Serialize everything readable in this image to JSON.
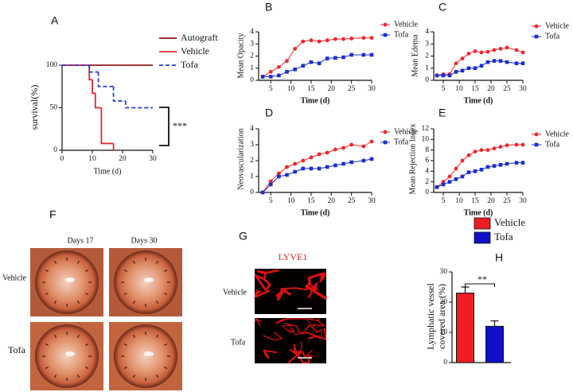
{
  "chart_data": [
    {
      "type": "line",
      "step": true,
      "title": "A",
      "xlabel": "Time (d)",
      "ylabel": "survival(%)",
      "xlim": [
        0,
        30
      ],
      "xticks": [
        0,
        10,
        20,
        30
      ],
      "ylim": [
        0,
        100
      ],
      "yticks": [
        0,
        50,
        100
      ],
      "annotation": "***",
      "legend": "right",
      "series": [
        {
          "name": "Autograft",
          "color": "#8b1a1a",
          "dashed": false,
          "x": [
            0,
            30
          ],
          "values": [
            100,
            100
          ]
        },
        {
          "name": "Vehicle",
          "color": "#e8262a",
          "dashed": false,
          "x": [
            0,
            9,
            10,
            11,
            13,
            17
          ],
          "values": [
            100,
            83,
            67,
            50,
            8,
            0
          ]
        },
        {
          "name": "Tofa",
          "color": "#2a3fd6",
          "dashed": true,
          "x": [
            0,
            9,
            12,
            17,
            21,
            30
          ],
          "values": [
            100,
            92,
            75,
            58,
            50,
            50
          ]
        }
      ]
    },
    {
      "type": "line",
      "title": "B",
      "xlabel": "Time (d)",
      "ylabel": "Mean Opacity",
      "x": [
        3,
        5,
        7,
        9,
        11,
        13,
        15,
        17,
        19,
        21,
        23,
        25,
        28,
        30
      ],
      "xlim": [
        2,
        30
      ],
      "xticks": [
        5,
        10,
        15,
        20,
        25,
        30
      ],
      "ylim": [
        0,
        4
      ],
      "yticks": [
        0,
        1,
        2,
        3,
        4
      ],
      "legend": "right",
      "series": [
        {
          "name": "Vehicle",
          "color": "#f0262a",
          "marker": "circle",
          "values": [
            0.3,
            0.7,
            1.1,
            1.6,
            2.6,
            3.2,
            3.3,
            3.2,
            3.3,
            3.4,
            3.4,
            3.45,
            3.5,
            3.5
          ]
        },
        {
          "name": "Tofa",
          "color": "#1a2fd0",
          "marker": "square",
          "values": [
            0.3,
            0.3,
            0.4,
            0.7,
            0.9,
            1.2,
            1.5,
            1.4,
            1.8,
            1.85,
            1.9,
            2.1,
            2.1,
            2.1
          ]
        }
      ]
    },
    {
      "type": "line",
      "title": "C",
      "xlabel": "Time (d)",
      "ylabel": "Mean Edema",
      "x": [
        3,
        5,
        7,
        9,
        11,
        13,
        15,
        17,
        19,
        21,
        23,
        25,
        28,
        30
      ],
      "xlim": [
        2,
        30
      ],
      "xticks": [
        5,
        10,
        15,
        20,
        25,
        30
      ],
      "ylim": [
        0,
        4
      ],
      "yticks": [
        0,
        1,
        2,
        3,
        4
      ],
      "legend": "right",
      "series": [
        {
          "name": "Vehicle",
          "color": "#f0262a",
          "marker": "circle",
          "values": [
            0.4,
            0.5,
            0.5,
            1.4,
            1.8,
            2.2,
            2.4,
            2.3,
            2.35,
            2.5,
            2.6,
            2.7,
            2.5,
            2.3
          ]
        },
        {
          "name": "Tofa",
          "color": "#1a2fd0",
          "marker": "square",
          "values": [
            0.4,
            0.4,
            0.4,
            0.7,
            0.8,
            1.0,
            1.0,
            1.2,
            1.5,
            1.6,
            1.6,
            1.5,
            1.4,
            1.4
          ]
        }
      ]
    },
    {
      "type": "line",
      "title": "D",
      "xlabel": "Time (d)",
      "ylabel": "Neovascularization",
      "x": [
        3,
        5,
        7,
        9,
        11,
        13,
        15,
        17,
        19,
        21,
        23,
        25,
        28,
        30
      ],
      "xlim": [
        2,
        30
      ],
      "xticks": [
        5,
        10,
        15,
        20,
        25,
        30
      ],
      "ylim": [
        0,
        4
      ],
      "yticks": [
        0,
        1,
        2,
        3,
        4
      ],
      "legend": "right",
      "series": [
        {
          "name": "Vehicle",
          "color": "#f0262a",
          "marker": "circle",
          "values": [
            0,
            0.7,
            1.2,
            1.6,
            1.8,
            2.0,
            2.2,
            2.4,
            2.5,
            2.7,
            2.8,
            3.0,
            2.9,
            3.2
          ]
        },
        {
          "name": "Tofa",
          "color": "#1a2fd0",
          "marker": "square",
          "values": [
            0,
            0.5,
            1.0,
            1.1,
            1.3,
            1.5,
            1.5,
            1.5,
            1.6,
            1.7,
            1.8,
            1.9,
            2.0,
            2.1
          ]
        }
      ]
    },
    {
      "type": "line",
      "title": "E",
      "xlabel": "Time (d)",
      "ylabel": "Mean Rejection Index",
      "x": [
        3,
        5,
        7,
        9,
        11,
        13,
        15,
        17,
        19,
        21,
        23,
        25,
        28,
        30
      ],
      "xlim": [
        2,
        30
      ],
      "xticks": [
        5,
        10,
        15,
        20,
        25,
        30
      ],
      "ylim": [
        0,
        12
      ],
      "yticks": [
        0,
        2,
        4,
        6,
        8,
        10,
        12
      ],
      "legend": "right",
      "series": [
        {
          "name": "Vehicle",
          "color": "#f0262a",
          "marker": "circle",
          "values": [
            1,
            2,
            3,
            4.5,
            6,
            7,
            7.7,
            8,
            8,
            8.3,
            8.6,
            8.9,
            9,
            9
          ]
        },
        {
          "name": "Tofa",
          "color": "#1a2fd0",
          "marker": "square",
          "values": [
            1,
            1.5,
            2,
            2.5,
            3,
            3.8,
            4,
            4.3,
            4.8,
            5,
            5.2,
            5.4,
            5.6,
            5.6
          ]
        }
      ]
    },
    {
      "type": "bar",
      "title": "H",
      "ylabel": [
        "Lymphatic vessel",
        "covered area (%)"
      ],
      "categories": [
        "Vehicle",
        "Tofa"
      ],
      "values": [
        23,
        12
      ],
      "errors": [
        2,
        1.8
      ],
      "colors": [
        "#ee1c24",
        "#1010c8"
      ],
      "ylim": [
        0,
        30
      ],
      "yticks": [
        0,
        10,
        20,
        30
      ],
      "annotation": "**",
      "legend": "top"
    }
  ],
  "images": {
    "F": {
      "label": "F",
      "columns": [
        "Days 17",
        "Days 30"
      ],
      "rows": [
        "Vehicle",
        "Tofa"
      ]
    },
    "G": {
      "label": "G",
      "stain": "LYVE1",
      "rows": [
        "Vehicle",
        "Tofa"
      ]
    }
  }
}
